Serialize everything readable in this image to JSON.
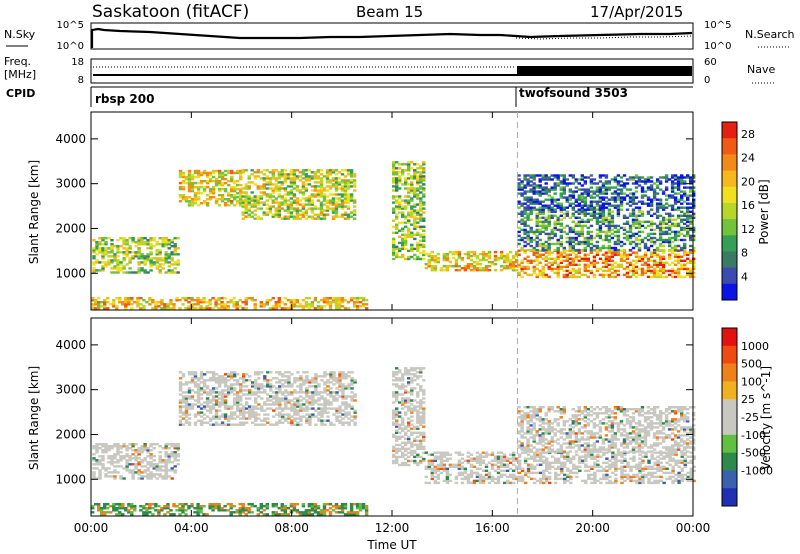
{
  "header": {
    "station": "Saskatoon (fitACF)",
    "beam": "Beam 15",
    "date": "17/Apr/2015"
  },
  "noise_panel": {
    "left_label": "N.Sky",
    "right_label": "N.Search",
    "left_ticks": [
      "10^5",
      "10^0"
    ],
    "right_ticks": [
      "10^5",
      "10^0"
    ]
  },
  "freq_panel": {
    "left_label_1": "Freq.",
    "left_label_2": "[MHz]",
    "right_label": "Nave",
    "left_ticks": [
      "18",
      "8"
    ],
    "right_ticks": [
      "60",
      "0"
    ]
  },
  "cpid_panel": {
    "label": "CPID",
    "segments": [
      "rbsp 200",
      "twofsound 3503"
    ]
  },
  "chart_data": [
    {
      "type": "heatmap",
      "title": "",
      "xlabel": "Time UT",
      "ylabel": "Slant Range [km]",
      "x_ticks": [
        "00:00",
        "04:00",
        "08:00",
        "12:00",
        "16:00",
        "20:00",
        "00:00"
      ],
      "xlim_hours": [
        0,
        24
      ],
      "y_ticks": [
        1000,
        2000,
        3000,
        4000
      ],
      "ylim": [
        180,
        4600
      ],
      "colorbar": {
        "label": "Power [dB]",
        "ticks": [
          4,
          8,
          12,
          16,
          20,
          24,
          28
        ],
        "range": [
          0,
          30
        ],
        "colors": [
          "#0a14e6",
          "#3a4ab0",
          "#3a7a64",
          "#35a055",
          "#72c23c",
          "#b8d52a",
          "#f0e020",
          "#f6b81c",
          "#f38a18",
          "#ef5a14",
          "#e52010"
        ]
      },
      "regions": [
        {
          "t": [
            0.05,
            3.5
          ],
          "r": [
            1000,
            1800
          ],
          "value": 14
        },
        {
          "t": [
            3.5,
            6.0
          ],
          "r": [
            2500,
            3300
          ],
          "value": 18
        },
        {
          "t": [
            6.0,
            10.5
          ],
          "r": [
            2200,
            3300
          ],
          "value": 16
        },
        {
          "t": [
            12.0,
            13.3
          ],
          "r": [
            1300,
            3500
          ],
          "value": 14
        },
        {
          "t": [
            13.3,
            17.0
          ],
          "r": [
            1050,
            1500
          ],
          "value": 19
        },
        {
          "t": [
            17.0,
            24.0
          ],
          "r": [
            900,
            1500
          ],
          "value": 22
        },
        {
          "t": [
            17.0,
            24.0
          ],
          "r": [
            1500,
            2400
          ],
          "value": 9
        },
        {
          "t": [
            17.0,
            24.0
          ],
          "r": [
            2400,
            3200
          ],
          "value": 5
        },
        {
          "t": [
            0.0,
            11.0
          ],
          "r": [
            200,
            450
          ],
          "value": 20
        }
      ]
    },
    {
      "type": "heatmap",
      "title": "",
      "xlabel": "Time UT",
      "ylabel": "Slant Range [km]",
      "x_ticks": [
        "00:00",
        "04:00",
        "08:00",
        "12:00",
        "16:00",
        "20:00",
        "00:00"
      ],
      "xlim_hours": [
        0,
        24
      ],
      "y_ticks": [
        1000,
        2000,
        3000,
        4000
      ],
      "ylim": [
        180,
        4600
      ],
      "colorbar": {
        "label": "Velocity [m s^-1]",
        "ticks": [
          1000,
          500,
          100,
          25,
          -25,
          -100,
          -500,
          -1000
        ],
        "colors": [
          "#2030b0",
          "#3a60b0",
          "#2e8a4a",
          "#62c040",
          "#c8c8c0",
          "#c8c8c0",
          "#f0b020",
          "#f08018",
          "#ef4a12",
          "#e51010"
        ]
      },
      "regions": [
        {
          "t": [
            0.05,
            3.5
          ],
          "r": [
            1000,
            1800
          ],
          "value": 0
        },
        {
          "t": [
            3.5,
            10.5
          ],
          "r": [
            2200,
            3400
          ],
          "value": 0
        },
        {
          "t": [
            12.0,
            13.3
          ],
          "r": [
            1300,
            3500
          ],
          "value": 0
        },
        {
          "t": [
            13.3,
            24.0
          ],
          "r": [
            900,
            1600
          ],
          "value": 0
        },
        {
          "t": [
            17.0,
            24.0
          ],
          "r": [
            1600,
            2600
          ],
          "value": 0
        },
        {
          "t": [
            0.0,
            11.0
          ],
          "r": [
            200,
            450
          ],
          "value": 150
        }
      ]
    }
  ]
}
